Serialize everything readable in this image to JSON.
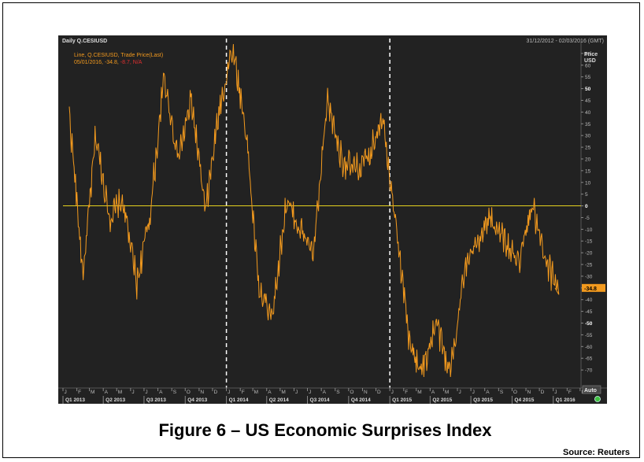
{
  "header": {
    "title": "Daily Q.CESIUSD",
    "date_range": "31/12/2012 - 02/03/2016 (GMT)"
  },
  "legend": {
    "line1": "Line, Q.CESIUSD, Trade Price(Last)",
    "line2_date": "05/01/2016,",
    "line2_value": "-34.8,",
    "line2_change": "-8.7,",
    "line2_na": "N/A"
  },
  "axis": {
    "price_label": "Price",
    "currency_label": "USD",
    "last_value_badge": "-34.8",
    "auto_label": "Auto"
  },
  "caption": "Figure 6 – US Economic Surprises Index",
  "source": "Source: Reuters",
  "colors": {
    "background": "#222222",
    "line": "#f39a1e",
    "zero_line": "#e6d21e",
    "dashed_separator": "#ffffff"
  },
  "chart_data": {
    "type": "line",
    "title": "Daily Q.CESIUSD",
    "ylim": [
      -75,
      70
    ],
    "y_ticks": [
      65,
      60,
      55,
      50,
      45,
      40,
      35,
      30,
      25,
      20,
      15,
      10,
      5,
      0,
      -5,
      -10,
      -15,
      -20,
      -25,
      -30,
      -35,
      -40,
      -45,
      -50,
      -55,
      -60,
      -65,
      -70
    ],
    "month_labels": [
      "J",
      "F",
      "M",
      "A",
      "M",
      "J",
      "J",
      "A",
      "S",
      "O",
      "N",
      "D",
      "J",
      "F",
      "M",
      "A",
      "M",
      "J",
      "J",
      "A",
      "S",
      "O",
      "N",
      "D",
      "J",
      "F",
      "M",
      "A",
      "M",
      "J",
      "J",
      "A",
      "S",
      "O",
      "N",
      "D",
      "J",
      "F",
      "M"
    ],
    "quarter_labels": [
      "Q1 2013",
      "Q2 2013",
      "Q3 2013",
      "Q4 2013",
      "Q1 2014",
      "Q2 2014",
      "Q3 2014",
      "Q4 2014",
      "Q1 2015",
      "Q2 2015",
      "Q3 2015",
      "Q4 2015",
      "Q1 2016"
    ],
    "year_separators": [
      "2014-01-01",
      "2015-01-01"
    ],
    "reference_line": 0,
    "series": [
      {
        "name": "Q.CESIUSD",
        "x": [
          "2013-01",
          "2013-02",
          "2013-03",
          "2013-04",
          "2013-05",
          "2013-06",
          "2013-07",
          "2013-08",
          "2013-09",
          "2013-10",
          "2013-11",
          "2013-12",
          "2014-01",
          "2014-02",
          "2014-03",
          "2014-04",
          "2014-05",
          "2014-06",
          "2014-07",
          "2014-08",
          "2014-09",
          "2014-10",
          "2014-11",
          "2014-12",
          "2015-01",
          "2015-02",
          "2015-03",
          "2015-04",
          "2015-05",
          "2015-06",
          "2015-07",
          "2015-08",
          "2015-09",
          "2015-10",
          "2015-11",
          "2015-12",
          "2016-01"
        ],
        "values": [
          40,
          -30,
          30,
          -5,
          2,
          -33,
          -3,
          55,
          20,
          45,
          -3,
          40,
          68,
          30,
          -37,
          -45,
          2,
          -10,
          -20,
          45,
          20,
          15,
          20,
          40,
          -8,
          -60,
          -70,
          -50,
          -72,
          -30,
          -15,
          -5,
          -15,
          -25,
          0,
          -25,
          -35
        ]
      }
    ]
  }
}
